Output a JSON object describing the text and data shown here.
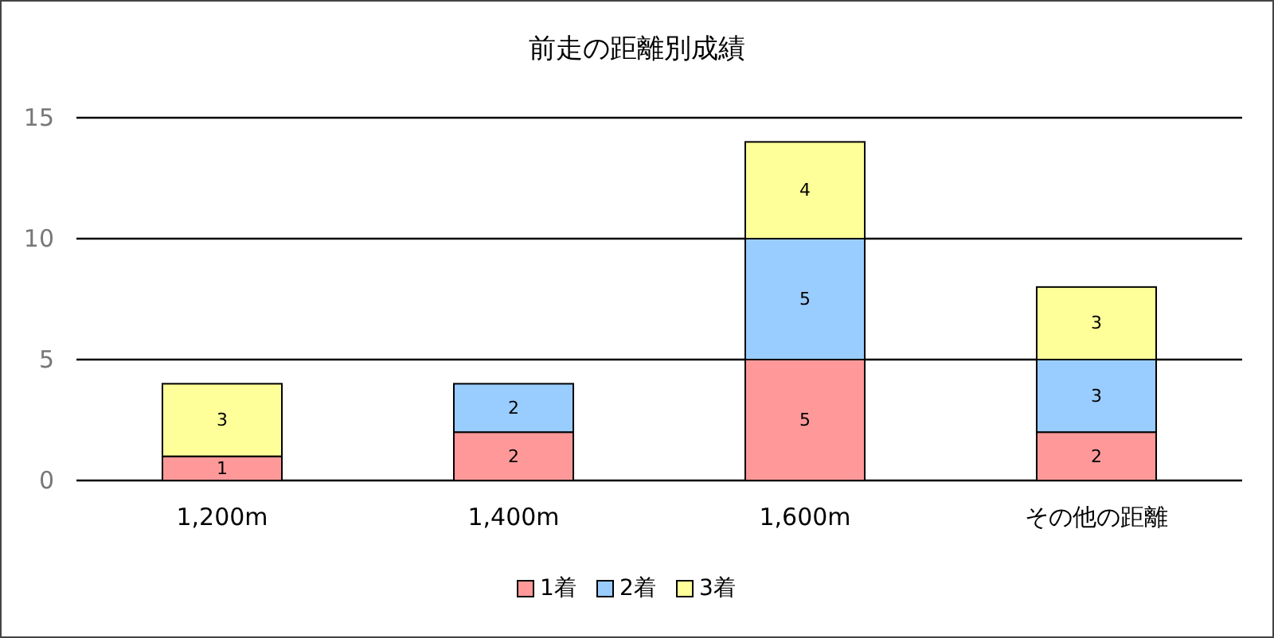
{
  "chart_data": {
    "type": "bar",
    "title": "前走の距離別成績",
    "categories": [
      "1,200m",
      "1,400m",
      "1,600m",
      "その他の距離"
    ],
    "series": [
      {
        "name": "1着",
        "color": "#ff9999",
        "values": [
          1,
          2,
          5,
          2
        ],
        "value_labels": [
          "1",
          "2",
          "5",
          "2"
        ]
      },
      {
        "name": "2着",
        "color": "#99ccff",
        "values": [
          0,
          2,
          5,
          3
        ],
        "value_labels": [
          null,
          "2",
          "5",
          "3"
        ]
      },
      {
        "name": "3着",
        "color": "#ffff99",
        "values": [
          3,
          0,
          4,
          3
        ],
        "value_labels": [
          "3",
          null,
          "4",
          "3"
        ]
      }
    ],
    "stacked": true,
    "ylim": [
      0,
      15
    ],
    "yticks": [
      0,
      5,
      10,
      15
    ],
    "grid": "y",
    "legend": "bottom"
  }
}
